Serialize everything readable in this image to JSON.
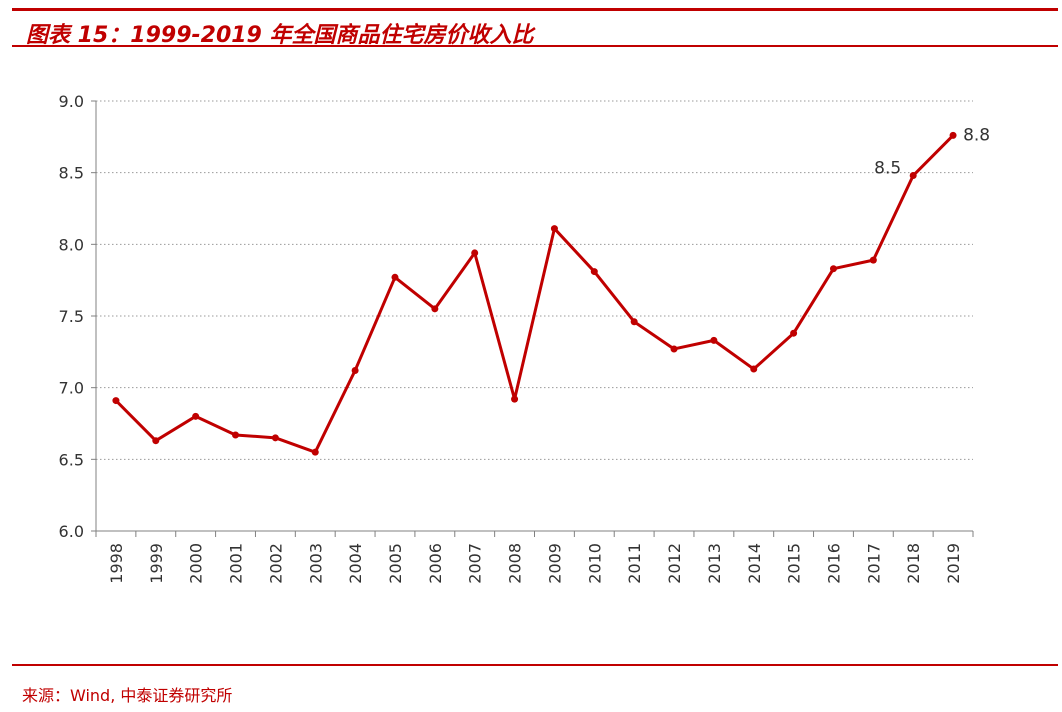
{
  "header": {
    "title": "图表 15：1999-2019 年全国商品住宅房价收入比"
  },
  "footer": {
    "source": "来源：Wind, 中泰证券研究所"
  },
  "colors": {
    "accent": "#c00000",
    "line": "#c00000",
    "grid": "#9a9a9a",
    "axis": "#808080",
    "text": "#333333"
  },
  "chart_data": {
    "type": "line",
    "title": "",
    "xlabel": "",
    "ylabel": "",
    "categories": [
      "1998",
      "1999",
      "2000",
      "2001",
      "2002",
      "2003",
      "2004",
      "2005",
      "2006",
      "2007",
      "2008",
      "2009",
      "2010",
      "2011",
      "2012",
      "2013",
      "2014",
      "2015",
      "2016",
      "2017",
      "2018",
      "2019"
    ],
    "series": [
      {
        "values": [
          6.91,
          6.63,
          6.8,
          6.67,
          6.65,
          6.55,
          7.12,
          7.77,
          7.55,
          7.94,
          6.92,
          8.11,
          7.81,
          7.46,
          7.27,
          7.33,
          7.13,
          7.38,
          7.83,
          7.89,
          8.48,
          8.76
        ]
      }
    ],
    "ylim": [
      6.0,
      9.0
    ],
    "yticks": [
      "6.0",
      "6.5",
      "7.0",
      "7.5",
      "8.0",
      "8.5",
      "9.0"
    ],
    "grid": true,
    "grid_style": "dotted horizontal",
    "legend": "none",
    "annotations": [
      {
        "category": "2018",
        "text": "8.5"
      },
      {
        "category": "2019",
        "text": "8.8"
      }
    ]
  }
}
